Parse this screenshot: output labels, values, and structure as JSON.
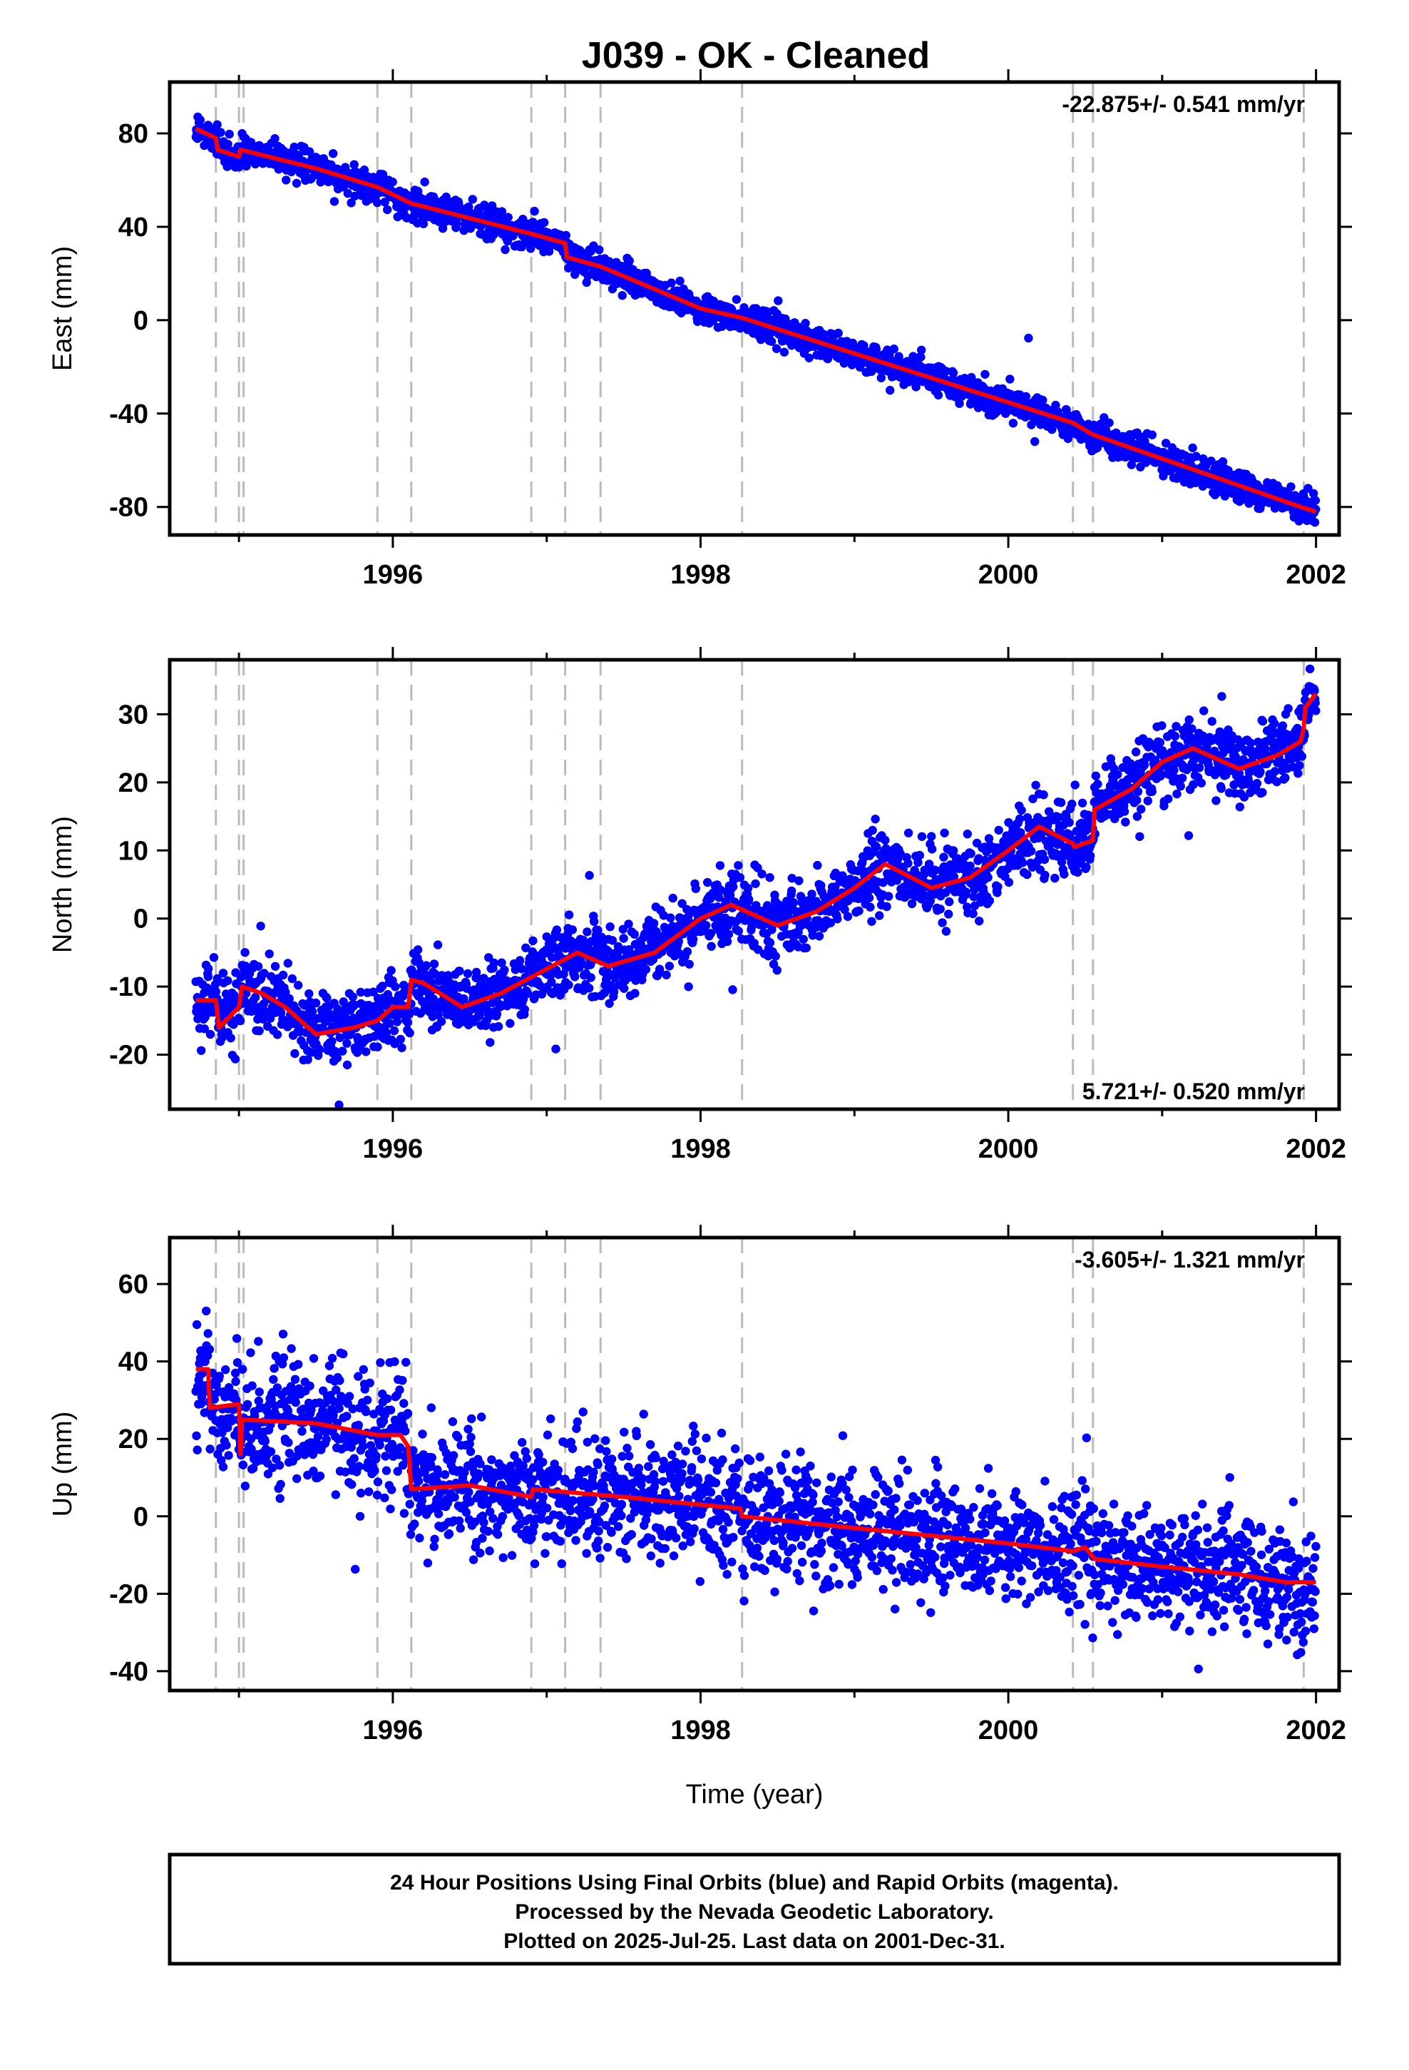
{
  "title": "J039  - OK - Cleaned",
  "xlabel": "Time (year)",
  "footer": [
    "24 Hour Positions Using Final Orbits (blue) and Rapid Orbits (magenta).",
    "Processed by the Nevada Geodetic Laboratory.",
    "Plotted on 2025-Jul-25. Last data on 2001-Dec-31."
  ],
  "colors": {
    "final_points": "#0000ff",
    "model_line": "#ff0000",
    "event_lines": "#bbbbbb",
    "frame": "#000000"
  },
  "chart_data": [
    {
      "type": "scatter",
      "component": "east",
      "ylabel": "East (mm)",
      "rate_label": "-22.875+/- 0.541 mm/yr",
      "rate_label_position": "top-right",
      "xlim": [
        1994.55,
        2002.15
      ],
      "ylim": [
        -92,
        102
      ],
      "xticks": [
        1996,
        1998,
        2000,
        2002
      ],
      "yticks": [
        -80,
        -40,
        0,
        40,
        80
      ],
      "data_start": 1994.72,
      "data_end": 2001.999,
      "rate_mm_per_yr": -22.875,
      "model": [
        [
          1994.72,
          82
        ],
        [
          1994.85,
          78
        ],
        [
          1994.86,
          73
        ],
        [
          1995.0,
          70
        ],
        [
          1995.01,
          73
        ],
        [
          1995.5,
          65
        ],
        [
          1995.9,
          57
        ],
        [
          1996.12,
          50
        ],
        [
          1996.9,
          37
        ],
        [
          1997.12,
          33
        ],
        [
          1997.13,
          27
        ],
        [
          1997.35,
          23
        ],
        [
          1998.0,
          5
        ],
        [
          1998.27,
          1
        ],
        [
          2000.42,
          -44
        ],
        [
          2000.55,
          -49
        ],
        [
          2001.9,
          -80
        ],
        [
          2001.999,
          -82
        ]
      ],
      "scatter_sigma_mm": 3.2
    },
    {
      "type": "scatter",
      "component": "north",
      "ylabel": "North (mm)",
      "rate_label": "5.721+/- 0.520 mm/yr",
      "rate_label_position": "bottom-right",
      "xlim": [
        1994.55,
        2002.15
      ],
      "ylim": [
        -28,
        38
      ],
      "xticks": [
        1996,
        1998,
        2000,
        2002
      ],
      "yticks": [
        -20,
        -10,
        0,
        10,
        20,
        30
      ],
      "data_start": 1994.72,
      "data_end": 2001.999,
      "rate_mm_per_yr": 5.721,
      "model": [
        [
          1994.72,
          -12
        ],
        [
          1994.85,
          -12
        ],
        [
          1994.87,
          -16
        ],
        [
          1995.0,
          -13
        ],
        [
          1995.02,
          -10
        ],
        [
          1995.15,
          -11
        ],
        [
          1995.3,
          -13
        ],
        [
          1995.5,
          -17
        ],
        [
          1995.75,
          -16
        ],
        [
          1995.9,
          -15
        ],
        [
          1996.0,
          -13
        ],
        [
          1996.1,
          -13
        ],
        [
          1996.12,
          -9
        ],
        [
          1996.2,
          -9.5
        ],
        [
          1996.45,
          -13
        ],
        [
          1996.7,
          -11
        ],
        [
          1996.95,
          -8
        ],
        [
          1997.2,
          -5
        ],
        [
          1997.35,
          -6.5
        ],
        [
          1997.4,
          -7
        ],
        [
          1997.7,
          -5
        ],
        [
          1998.0,
          0
        ],
        [
          1998.2,
          2
        ],
        [
          1998.5,
          -1
        ],
        [
          1998.75,
          1
        ],
        [
          1999.0,
          4.5
        ],
        [
          1999.2,
          8
        ],
        [
          1999.5,
          4.5
        ],
        [
          1999.75,
          6
        ],
        [
          2000.0,
          10
        ],
        [
          2000.2,
          13.5
        ],
        [
          2000.42,
          11
        ],
        [
          2000.43,
          10.5
        ],
        [
          2000.55,
          11.5
        ],
        [
          2000.56,
          16
        ],
        [
          2000.8,
          19
        ],
        [
          2001.0,
          23
        ],
        [
          2001.2,
          25
        ],
        [
          2001.5,
          22
        ],
        [
          2001.75,
          24
        ],
        [
          2001.9,
          26
        ],
        [
          2001.92,
          28
        ],
        [
          2001.93,
          31
        ],
        [
          2001.999,
          33
        ]
      ],
      "scatter_sigma_mm": 2.6
    },
    {
      "type": "scatter",
      "component": "up",
      "ylabel": "Up (mm)",
      "rate_label": "-3.605+/- 1.321 mm/yr",
      "rate_label_position": "top-right",
      "xlim": [
        1994.55,
        2002.15
      ],
      "ylim": [
        -45,
        72
      ],
      "xticks": [
        1996,
        1998,
        2000,
        2002
      ],
      "yticks": [
        -40,
        -20,
        0,
        20,
        40,
        60
      ],
      "data_start": 1994.72,
      "data_end": 2001.999,
      "rate_mm_per_yr": -3.605,
      "model": [
        [
          1994.72,
          38
        ],
        [
          1994.8,
          38
        ],
        [
          1994.81,
          28
        ],
        [
          1995.0,
          29
        ],
        [
          1995.01,
          16
        ],
        [
          1995.02,
          25
        ],
        [
          1995.5,
          24
        ],
        [
          1995.9,
          21
        ],
        [
          1996.05,
          21
        ],
        [
          1996.1,
          18
        ],
        [
          1996.12,
          7
        ],
        [
          1996.5,
          8
        ],
        [
          1996.9,
          5
        ],
        [
          1996.91,
          7
        ],
        [
          1997.5,
          5
        ],
        [
          1998.0,
          3
        ],
        [
          1998.26,
          2
        ],
        [
          1998.27,
          0
        ],
        [
          1999.0,
          -3
        ],
        [
          1999.5,
          -5
        ],
        [
          2000.0,
          -7
        ],
        [
          2000.42,
          -9
        ],
        [
          2000.5,
          -8
        ],
        [
          2000.56,
          -11
        ],
        [
          2001.0,
          -13
        ],
        [
          2001.5,
          -15
        ],
        [
          2001.8,
          -17
        ],
        [
          2001.999,
          -17
        ]
      ],
      "scatter_sigma_mm": 7.5
    }
  ],
  "event_lines": [
    1994.85,
    1995.0,
    1995.03,
    1995.9,
    1996.12,
    1996.9,
    1997.12,
    1997.35,
    1998.27,
    2000.42,
    2000.55,
    2001.92
  ]
}
